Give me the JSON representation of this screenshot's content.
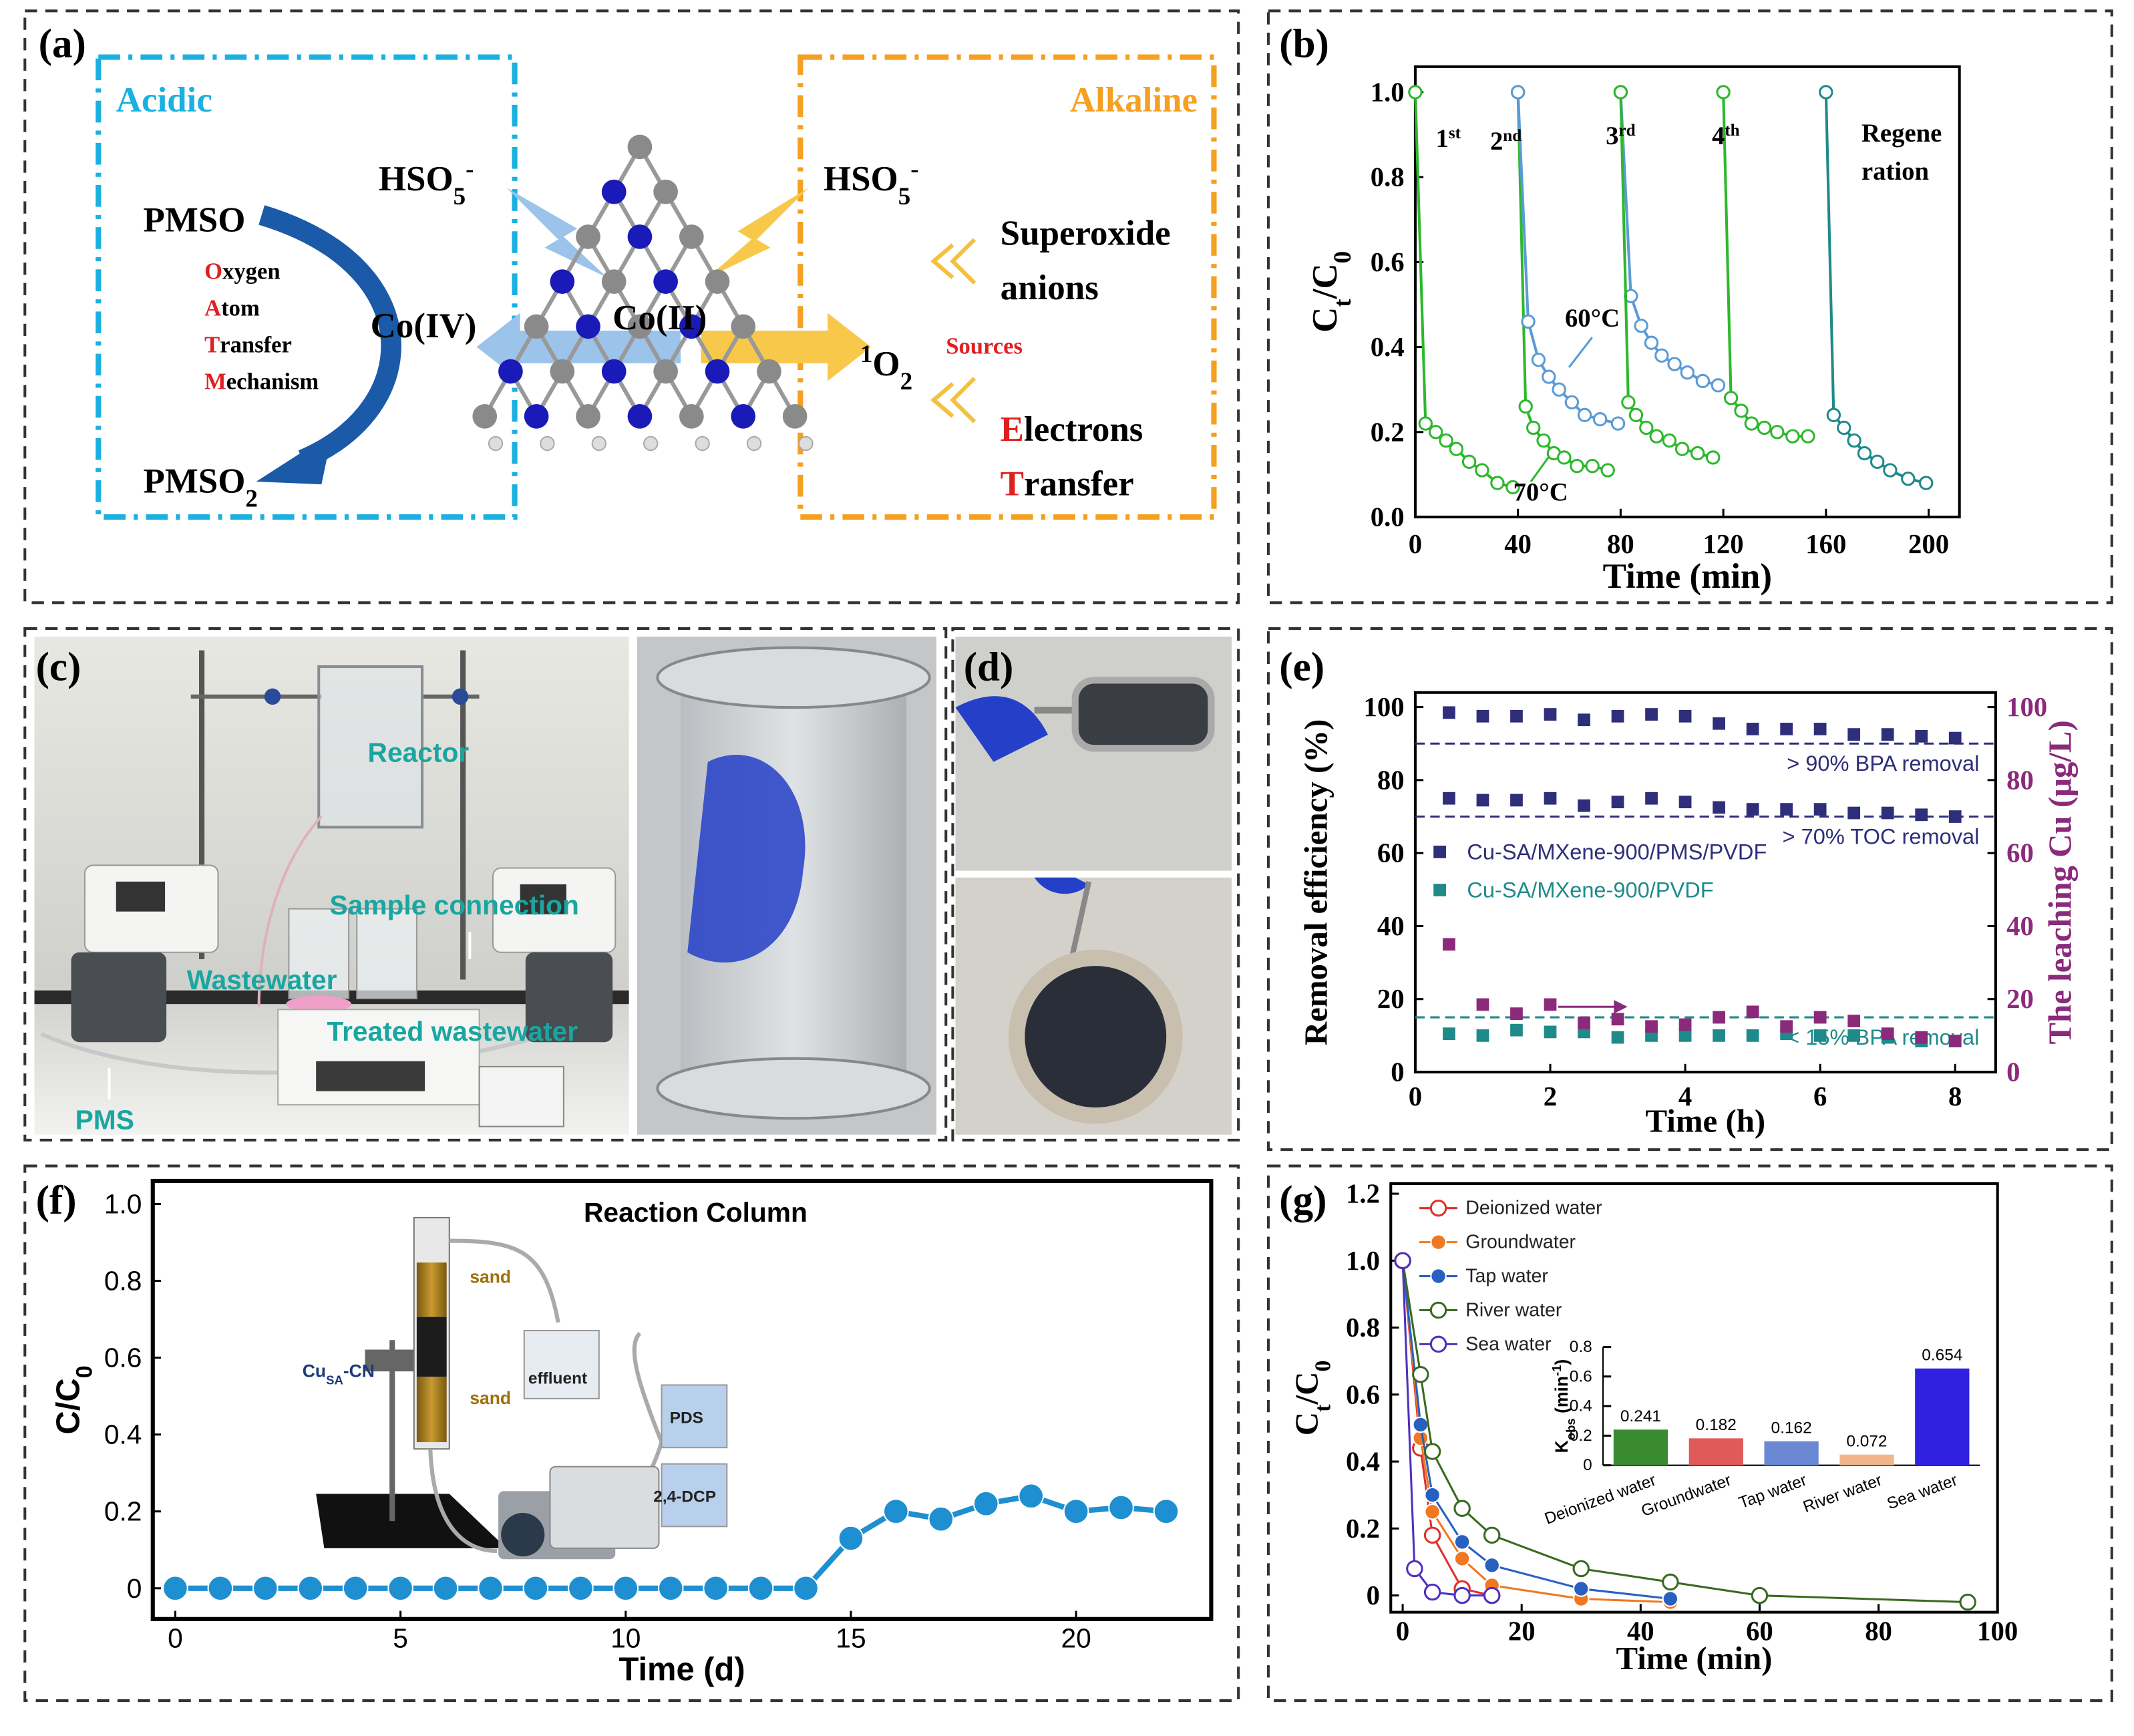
{
  "panel_labels": [
    "(a)",
    "(b)",
    "(c)",
    "(d)",
    "(e)",
    "(f)",
    "(g)"
  ],
  "diagram": {
    "acidic": "Acidic",
    "alkaline": "Alkaline",
    "hso5_left": [
      "HSO",
      {
        "sub": "5"
      },
      {
        "sup": "-"
      }
    ],
    "hso5_right": [
      "HSO",
      {
        "sub": "5"
      },
      {
        "sup": "-"
      }
    ],
    "pmso": "PMSO",
    "oat": [
      [
        "O",
        "xygen"
      ],
      [
        "A",
        "tom"
      ],
      [
        "T",
        "ransfer"
      ],
      [
        "M",
        "echanism"
      ]
    ],
    "pmso2": [
      "PMSO",
      {
        "sub": "2"
      }
    ],
    "co4": "Co(IV)",
    "co2": "Co(II)",
    "singlet": [
      {
        "sup": "1"
      },
      "O",
      {
        "sub": "2"
      }
    ],
    "sources": "Sources",
    "superoxide": "Superoxide",
    "anions": "anions",
    "et": [
      [
        "E",
        "lectrons"
      ],
      [
        "T",
        "ransfer"
      ]
    ]
  },
  "photos": {
    "c_labels": [
      "Reactor",
      "Sample connection",
      "Wastewater",
      "Treated wastewater",
      "PMS"
    ]
  },
  "chart_data": [
    {
      "type": "line",
      "x_label": "Time (min)",
      "y_label": [
        "C",
        {
          "sub": "t"
        },
        "/C",
        {
          "sub": "0"
        }
      ],
      "xlim": [
        0,
        212
      ],
      "ylim": [
        0,
        1.06
      ],
      "xticks": [
        0,
        40,
        80,
        120,
        160,
        200
      ],
      "yticks": [
        {
          "value": 0,
          "label": "0.0"
        },
        0.2,
        0.4,
        0.6,
        0.8,
        {
          "value": 1,
          "label": "1.0"
        }
      ],
      "marker": "circle",
      "marker_fill": "none",
      "series": [
        {
          "color": "#2db82d",
          "x": [
            0,
            4,
            8,
            12,
            16,
            21,
            26,
            32,
            38
          ],
          "values": [
            1.0,
            0.22,
            0.2,
            0.18,
            0.16,
            0.13,
            0.11,
            0.08,
            0.07
          ]
        },
        {
          "color": "#2db82d",
          "x": [
            40,
            43,
            46,
            50,
            54,
            58,
            63,
            69,
            75
          ],
          "values": [
            1.0,
            0.26,
            0.21,
            0.18,
            0.15,
            0.14,
            0.12,
            0.12,
            0.11
          ]
        },
        {
          "color": "#5b9bd5",
          "x": [
            40,
            44,
            48,
            52,
            56,
            61,
            66,
            72,
            79
          ],
          "values": [
            1.0,
            0.46,
            0.37,
            0.33,
            0.3,
            0.27,
            0.24,
            0.23,
            0.22
          ]
        },
        {
          "color": "#5b9bd5",
          "x": [
            80,
            84,
            88,
            92,
            96,
            101,
            106,
            112,
            118
          ],
          "values": [
            1.0,
            0.52,
            0.45,
            0.41,
            0.38,
            0.36,
            0.34,
            0.32,
            0.31
          ]
        },
        {
          "color": "#2db82d",
          "x": [
            80,
            83,
            86,
            90,
            94,
            99,
            104,
            110,
            116
          ],
          "values": [
            1.0,
            0.27,
            0.24,
            0.21,
            0.19,
            0.18,
            0.16,
            0.15,
            0.14
          ]
        },
        {
          "color": "#2db82d",
          "x": [
            120,
            123,
            127,
            131,
            136,
            141,
            147,
            153
          ],
          "values": [
            1.0,
            0.28,
            0.25,
            0.22,
            0.21,
            0.2,
            0.19,
            0.19
          ]
        },
        {
          "color": "#1f8a8a",
          "x": [
            160,
            163,
            167,
            171,
            175,
            180,
            185,
            192,
            199
          ],
          "values": [
            1.0,
            0.24,
            0.21,
            0.18,
            0.15,
            0.13,
            0.11,
            0.09,
            0.08
          ]
        }
      ],
      "annotations": [
        {
          "base": "1",
          "sup": "st"
        },
        {
          "base": "2",
          "sup": "nd"
        },
        {
          "base": "3",
          "sup": "rd"
        },
        {
          "base": "4",
          "sup": "th"
        },
        "Regene",
        "ration",
        "60°C",
        "70°C"
      ]
    },
    {
      "type": "scatter",
      "x_label": "Time (h)",
      "y_label": "Removal efficiency (%)",
      "y2_label": "The leaching Cu (μg/L)",
      "xlim": [
        0,
        8.6
      ],
      "ylim": [
        0,
        104
      ],
      "y2lim": [
        0,
        104
      ],
      "xticks": [
        0,
        2,
        4,
        6,
        8
      ],
      "yticks": [
        0,
        20,
        40,
        60,
        80,
        100
      ],
      "y2ticks": [
        0,
        20,
        40,
        60,
        80,
        100
      ],
      "marker": "square",
      "legend": "left",
      "x": [
        0.5,
        1,
        1.5,
        2,
        2.5,
        3,
        3.5,
        4,
        4.5,
        5,
        5.5,
        6,
        6.5,
        7,
        7.5,
        8
      ],
      "series": [
        {
          "name": "Cu-SA/MXene-900/PMS/PVDF",
          "color": "#2e2e7a",
          "values": [
            98.5,
            97.5,
            97.5,
            98,
            96.5,
            97.5,
            98,
            97.5,
            95.5,
            94,
            94,
            94,
            92.5,
            92.5,
            92,
            91.5
          ]
        },
        {
          "color": "#2e2e7a",
          "values": [
            75,
            74.5,
            74.5,
            75,
            73,
            74,
            75,
            74,
            72.5,
            72,
            72,
            72,
            71,
            71,
            70.5,
            70
          ]
        },
        {
          "name": "Cu-SA/MXene-900/PVDF",
          "color": "#1f8a8a",
          "values": [
            10.5,
            10,
            11.5,
            11,
            11,
            9.5,
            10,
            10,
            10,
            10,
            10.5,
            10,
            10,
            9.5,
            8.5,
            8.5
          ]
        },
        {
          "color": "#8b2a7a",
          "axis": "y2",
          "values": [
            35,
            18.5,
            16,
            18.5,
            13.5,
            14.5,
            12.5,
            13,
            15,
            16.5,
            12.5,
            15,
            14,
            10.5,
            9.5,
            8.5
          ]
        }
      ],
      "hlines": [
        {
          "value": 90,
          "label": "> 90% BPA removal",
          "color": "#2e2e7a"
        },
        {
          "value": 70,
          "label": "> 70% TOC removal",
          "color": "#2e2e7a"
        },
        {
          "value": 15,
          "label": "< 15% BPA removal",
          "color": "#1f8a8a"
        }
      ]
    },
    {
      "type": "line",
      "title": "Reaction Column",
      "x_label": "Time (d)",
      "y_label": [
        "C/C",
        {
          "sub": "0"
        }
      ],
      "xlim": [
        -0.5,
        23
      ],
      "ylim": [
        -0.08,
        1.06
      ],
      "xticks": [
        0,
        5,
        10,
        15,
        20
      ],
      "yticks": [
        0,
        0.2,
        0.4,
        0.6,
        0.8,
        {
          "value": 1,
          "label": "1.0"
        }
      ],
      "marker": "circle",
      "x": [
        0,
        1,
        2,
        3,
        4,
        5,
        6,
        7,
        8,
        9,
        10,
        11,
        12,
        13,
        14,
        15,
        16,
        17,
        18,
        19,
        20,
        21,
        22
      ],
      "series": [
        {
          "color": "#1e8fd0",
          "values": [
            0,
            0,
            0,
            0,
            0,
            0,
            0,
            0,
            0,
            0,
            0,
            0,
            0,
            0,
            0,
            0.13,
            0.2,
            0.18,
            0.22,
            0.24,
            0.2,
            0.21,
            0.2
          ]
        }
      ],
      "inset_labels": {
        "sand_top": "sand",
        "sand_bottom": "sand",
        "effluent": "effluent",
        "pds": "PDS",
        "dcp": "2,4-DCP",
        "catalyst": [
          "Cu",
          {
            "sub": "SA"
          },
          "-CN"
        ]
      }
    },
    {
      "type": "line",
      "x_label": "Time (min)",
      "y_label": [
        "C",
        {
          "sub": "t"
        },
        "/C",
        {
          "sub": "0"
        }
      ],
      "xlim": [
        -2,
        100
      ],
      "ylim": [
        -0.05,
        1.23
      ],
      "xticks": [
        0,
        20,
        40,
        60,
        80,
        100
      ],
      "yticks": [
        0,
        0.2,
        0.4,
        0.6,
        0.8,
        {
          "value": 1,
          "label": "1.0"
        },
        1.2
      ],
      "marker": "circle",
      "legend": "upper-left",
      "series": [
        {
          "name": "Deionized water",
          "color": "#e0302a",
          "marker_fill": "none",
          "x": [
            0,
            3,
            5,
            10,
            15
          ],
          "values": [
            1,
            0.44,
            0.18,
            0.02,
            0
          ]
        },
        {
          "name": "Groundwater",
          "color": "#f07820",
          "x": [
            0,
            3,
            5,
            10,
            15,
            30,
            45
          ],
          "values": [
            1,
            0.47,
            0.25,
            0.11,
            0.03,
            -0.01,
            -0.02
          ]
        },
        {
          "name": "Tap water",
          "color": "#2860c0",
          "x": [
            0,
            3,
            5,
            10,
            15,
            30,
            45
          ],
          "values": [
            1,
            0.51,
            0.3,
            0.16,
            0.09,
            0.02,
            -0.01
          ]
        },
        {
          "name": "River water",
          "color": "#3a6a20",
          "marker_fill": "none",
          "x": [
            0,
            3,
            5,
            10,
            15,
            30,
            45,
            60,
            95
          ],
          "values": [
            1,
            0.66,
            0.43,
            0.26,
            0.18,
            0.08,
            0.04,
            0,
            -0.02
          ]
        },
        {
          "name": "Sea water",
          "color": "#5030c0",
          "marker_fill": "none",
          "x": [
            0,
            2,
            5,
            10,
            15
          ],
          "values": [
            1,
            0.08,
            0.01,
            0,
            0
          ]
        }
      ]
    },
    {
      "type": "bar",
      "frame": false,
      "y_label": [
        "K",
        {
          "sub": "obs"
        },
        " (min",
        {
          "sup": "-1"
        },
        ")"
      ],
      "categories": [
        "Deionized water",
        "Groundwater",
        "Tap water",
        "River water",
        "Sea water"
      ],
      "values": [
        0.241,
        0.182,
        0.162,
        0.072,
        0.654
      ],
      "colors": [
        "#3a8a30",
        "#e05a5a",
        "#6a88d4",
        "#f2b48a",
        "#3020e0"
      ],
      "ylim": [
        0,
        0.8
      ],
      "yticks": [
        0,
        0.2,
        0.4,
        0.6,
        0.8
      ]
    }
  ]
}
